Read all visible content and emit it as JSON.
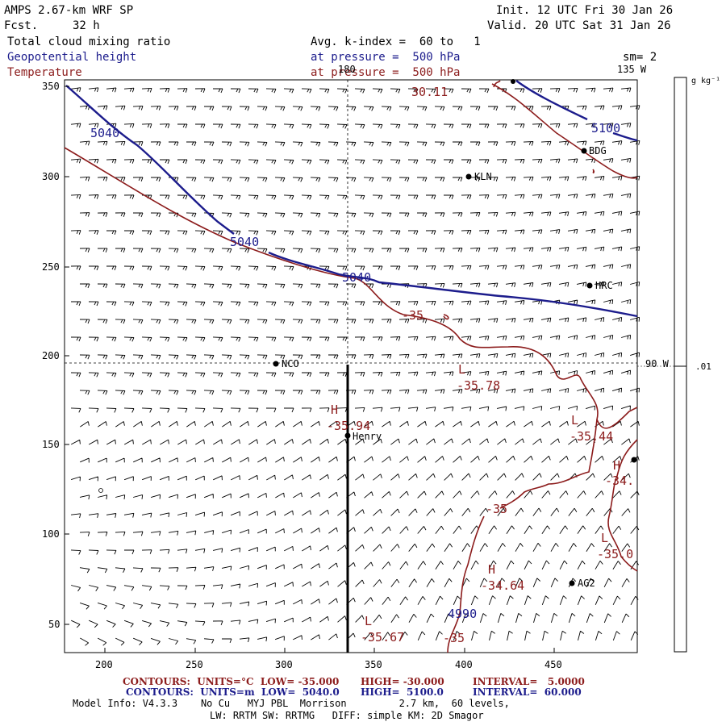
{
  "header": {
    "model": "AMPS 2.67-km WRF SP",
    "fcst_label": "Fcst.",
    "fcst_value": "32 h",
    "init": "Init. 12 UTC Fri 30 Jan 26",
    "valid": "Valid. 20 UTC Sat 31 Jan 26",
    "field1": "Total cloud mixing ratio",
    "field2": "Geopotential height",
    "field3": "Temperature",
    "avg": "Avg. k-index =  60 to   1",
    "pressure1": "at pressure =  500 hPa",
    "pressure2": "at pressure =  500 hPa",
    "sm": "sm= 2"
  },
  "map": {
    "lon_180": "180",
    "lon_135": "135 W",
    "lon_90": "90 W",
    "stations": [
      "BDG",
      "KLN",
      "HRC",
      "NCO",
      "Henry",
      "AG2"
    ],
    "x_ticks": [
      "200",
      "250",
      "300",
      "350",
      "400",
      "450"
    ],
    "y_ticks": [
      "350",
      "300",
      "250",
      "200",
      "150",
      "100",
      "50"
    ]
  },
  "contour_labels": {
    "t1": "30.11",
    "t2": "-35",
    "t3": "-35",
    "t4": "-35",
    "h1": "5040",
    "h2": "5040",
    "h3": "5040",
    "h4": "5100",
    "h5": "4990",
    "minmax": [
      {
        "sym": "L",
        "val": "-35.78"
      },
      {
        "sym": "H",
        "val": "-35.94"
      },
      {
        "sym": "L",
        "val": "-35.44"
      },
      {
        "sym": "H",
        "val": "-34."
      },
      {
        "sym": "L",
        "val": "-35.0"
      },
      {
        "sym": "H",
        "val": "-34.64"
      },
      {
        "sym": "L",
        "val": "-35.67"
      }
    ]
  },
  "colorbar": {
    "unit": "g kg⁻¹",
    "value": ".01"
  },
  "footer": {
    "row1": {
      "a": "CONTOURS:  UNITS=°C  LOW= -35.000",
      "b": "HIGH= -30.000",
      "c": "INTERVAL=   5.0000"
    },
    "row2": {
      "a": "CONTOURS:  UNITS=m  LOW=  5040.0",
      "b": "HIGH=  5100.0",
      "c": "INTERVAL=  60.000"
    },
    "info1": "Model Info: V4.3.3    No Cu   MYJ PBL  Morrison         2.7 km,  60 levels,",
    "info2": "LW: RRTM SW: RRTMG   DIFF: simple KM: 2D Smagor"
  },
  "colors": {
    "temp": "#8c1c1c",
    "height": "#1c1c8c"
  }
}
